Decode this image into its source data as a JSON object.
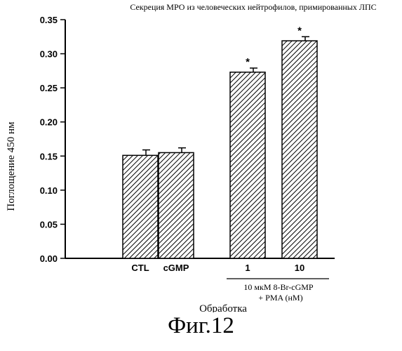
{
  "chart_data": {
    "type": "bar",
    "title": "Секреция МРО из человеческих нейтрофилов, примированных ЛПС",
    "xlabel": "Обработка",
    "ylabel": "Поглощение 450 нм",
    "ylim": [
      0,
      0.35
    ],
    "yticks": [
      "0.00",
      "0.05",
      "0.10",
      "0.15",
      "0.20",
      "0.25",
      "0.30",
      "0.35"
    ],
    "categories": [
      "CTL",
      "cGMP",
      "1",
      "10"
    ],
    "values": [
      0.151,
      0.155,
      0.273,
      0.319
    ],
    "errors": [
      0.008,
      0.007,
      0.006,
      0.006
    ],
    "significance": [
      "",
      "",
      "*",
      "*"
    ],
    "group_label_line1": "10 мкМ 8-Br-cGMP",
    "group_label_line2": "+ PMA (нМ)",
    "bar_fill": "hatched",
    "grid": false,
    "legend": "none"
  },
  "figure_caption": "Фиг.12"
}
